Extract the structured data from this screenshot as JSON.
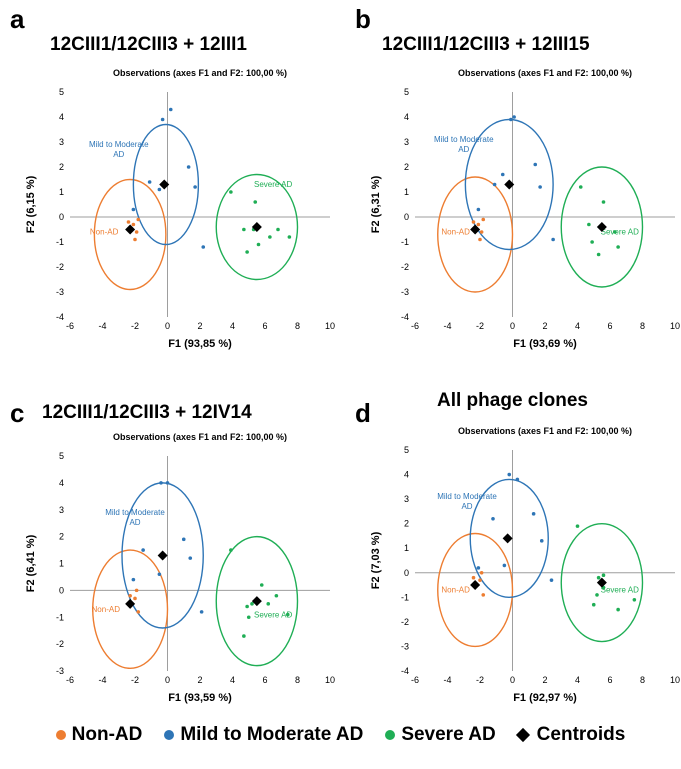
{
  "colors": {
    "non_ad": "#ED7D31",
    "mild": "#2E75B6",
    "severe": "#1FAE55",
    "centroid": "#000000",
    "axis": "#9E9E9E"
  },
  "legend": {
    "items": [
      {
        "label": "Non-AD",
        "marker": "dot",
        "color": "#ED7D31"
      },
      {
        "label": "Mild to Moderate AD",
        "marker": "dot",
        "color": "#2E75B6"
      },
      {
        "label": "Severe AD",
        "marker": "dot",
        "color": "#1FAE55"
      },
      {
        "label": "Centroids",
        "marker": "diamond",
        "color": "#000000"
      }
    ]
  },
  "chart_data": [
    {
      "panel": "a",
      "title": "12CIII1/12CIII3 + 12III1",
      "subtitle": "Observations (axes F1 and F2: 100,00 %)",
      "type": "scatter",
      "xlabel": "F1 (93,85 %)",
      "ylabel": "F2 (6,15 %)",
      "xlim": [
        -6,
        10
      ],
      "ylim": [
        -4,
        5
      ],
      "xticks": [
        -6,
        -4,
        -2,
        0,
        2,
        4,
        6,
        8,
        10
      ],
      "yticks": [
        -4,
        -3,
        -2,
        -1,
        0,
        1,
        2,
        3,
        4,
        5
      ],
      "groups": [
        {
          "name": "Non-AD",
          "color": "#ED7D31",
          "label_pos": [
            -3.9,
            -0.7
          ],
          "points": [
            [
              -2.3,
              -0.5
            ],
            [
              -2.1,
              -0.3
            ],
            [
              -1.9,
              -0.6
            ],
            [
              -2.0,
              -0.9
            ],
            [
              -2.4,
              -0.2
            ],
            [
              -1.8,
              -0.1
            ]
          ],
          "ellipse": {
            "cx": -2.3,
            "cy": -0.7,
            "rx": 2.2,
            "ry": 2.2
          }
        },
        {
          "name": "Mild to Moderate AD",
          "color": "#2E75B6",
          "label_pos": [
            -3.0,
            2.8
          ],
          "points": [
            [
              -0.3,
              3.9
            ],
            [
              0.2,
              4.3
            ],
            [
              -0.5,
              1.1
            ],
            [
              1.3,
              2.0
            ],
            [
              1.7,
              1.2
            ],
            [
              2.2,
              -1.2
            ],
            [
              -1.1,
              1.4
            ],
            [
              -2.1,
              0.3
            ]
          ],
          "ellipse": {
            "cx": -0.1,
            "cy": 1.3,
            "rx": 2.0,
            "ry": 2.4
          }
        },
        {
          "name": "Severe AD",
          "color": "#1FAE55",
          "label_pos": [
            6.5,
            1.2
          ],
          "points": [
            [
              3.9,
              1.0
            ],
            [
              4.7,
              -0.5
            ],
            [
              4.9,
              -1.4
            ],
            [
              5.3,
              -0.5
            ],
            [
              5.6,
              -1.1
            ],
            [
              6.3,
              -0.8
            ],
            [
              6.8,
              -0.5
            ],
            [
              5.4,
              0.6
            ],
            [
              7.5,
              -0.8
            ]
          ],
          "ellipse": {
            "cx": 5.5,
            "cy": -0.4,
            "rx": 2.5,
            "ry": 2.1
          }
        }
      ],
      "centroids": [
        [
          -2.3,
          -0.5
        ],
        [
          -0.2,
          1.3
        ],
        [
          5.5,
          -0.4
        ]
      ]
    },
    {
      "panel": "b",
      "title": "12CIII1/12CIII3 + 12III15",
      "subtitle": "Observations (axes F1 and F2: 100,00 %)",
      "type": "scatter",
      "xlabel": "F1 (93,69 %)",
      "ylabel": "F2 (6,31 %)",
      "xlim": [
        -6,
        10
      ],
      "ylim": [
        -4,
        5
      ],
      "xticks": [
        -6,
        -4,
        -2,
        0,
        2,
        4,
        6,
        8,
        10
      ],
      "yticks": [
        -4,
        -3,
        -2,
        -1,
        0,
        1,
        2,
        3,
        4,
        5
      ],
      "groups": [
        {
          "name": "Non-AD",
          "color": "#ED7D31",
          "label_pos": [
            -3.5,
            -0.7
          ],
          "points": [
            [
              -2.3,
              -0.5
            ],
            [
              -2.1,
              -0.3
            ],
            [
              -1.9,
              -0.6
            ],
            [
              -2.0,
              -0.9
            ],
            [
              -2.4,
              -0.2
            ],
            [
              -1.8,
              -0.1
            ]
          ],
          "ellipse": {
            "cx": -2.3,
            "cy": -0.7,
            "rx": 2.3,
            "ry": 2.3
          }
        },
        {
          "name": "Mild to Moderate AD",
          "color": "#2E75B6",
          "label_pos": [
            -3.0,
            3.0
          ],
          "points": [
            [
              -0.1,
              3.9
            ],
            [
              0.1,
              4.0
            ],
            [
              -0.6,
              1.7
            ],
            [
              1.4,
              2.1
            ],
            [
              1.7,
              1.2
            ],
            [
              2.5,
              -0.9
            ],
            [
              -1.1,
              1.3
            ],
            [
              -2.1,
              0.3
            ]
          ],
          "ellipse": {
            "cx": -0.2,
            "cy": 1.3,
            "rx": 2.7,
            "ry": 2.6
          }
        },
        {
          "name": "Severe AD",
          "color": "#1FAE55",
          "label_pos": [
            6.6,
            -0.7
          ],
          "points": [
            [
              4.2,
              1.2
            ],
            [
              4.7,
              -0.3
            ],
            [
              4.9,
              -1.0
            ],
            [
              5.3,
              -1.5
            ],
            [
              5.6,
              0.6
            ],
            [
              6.3,
              -0.6
            ],
            [
              6.5,
              -1.2
            ]
          ],
          "ellipse": {
            "cx": 5.5,
            "cy": -0.4,
            "rx": 2.5,
            "ry": 2.4
          }
        }
      ],
      "centroids": [
        [
          -2.3,
          -0.5
        ],
        [
          -0.2,
          1.3
        ],
        [
          5.5,
          -0.4
        ]
      ]
    },
    {
      "panel": "c",
      "title": "12CIII1/12CIII3 + 12IV14",
      "subtitle": "Observations (axes F1 and F2: 100,00 %)",
      "type": "scatter",
      "xlabel": "F1 (93,59 %)",
      "ylabel": "F2 (6,41 %)",
      "xlim": [
        -6,
        10
      ],
      "ylim": [
        -3,
        5
      ],
      "xticks": [
        -6,
        -4,
        -2,
        0,
        2,
        4,
        6,
        8,
        10
      ],
      "yticks": [
        -3,
        -2,
        -1,
        0,
        1,
        2,
        3,
        4,
        5
      ],
      "groups": [
        {
          "name": "Non-AD",
          "color": "#ED7D31",
          "label_pos": [
            -3.8,
            -0.8
          ],
          "points": [
            [
              -2.2,
              -0.5
            ],
            [
              -2.0,
              -0.3
            ],
            [
              -1.8,
              -0.8
            ],
            [
              -2.3,
              -0.2
            ],
            [
              -1.9,
              0.0
            ]
          ],
          "ellipse": {
            "cx": -2.3,
            "cy": -0.7,
            "rx": 2.3,
            "ry": 2.2
          }
        },
        {
          "name": "Mild to Moderate AD",
          "color": "#2E75B6",
          "label_pos": [
            -2.0,
            2.8
          ],
          "points": [
            [
              -0.4,
              4.0
            ],
            [
              0.0,
              4.0
            ],
            [
              -0.5,
              0.6
            ],
            [
              1.0,
              1.9
            ],
            [
              1.4,
              1.2
            ],
            [
              2.1,
              -0.8
            ],
            [
              -1.5,
              1.5
            ],
            [
              -2.1,
              0.4
            ]
          ],
          "ellipse": {
            "cx": -0.3,
            "cy": 1.3,
            "rx": 2.5,
            "ry": 2.7
          }
        },
        {
          "name": "Severe AD",
          "color": "#1FAE55",
          "label_pos": [
            6.5,
            -1.0
          ],
          "points": [
            [
              3.9,
              1.5
            ],
            [
              4.9,
              -0.6
            ],
            [
              5.0,
              -1.0
            ],
            [
              5.2,
              -0.5
            ],
            [
              5.8,
              0.2
            ],
            [
              6.2,
              -0.5
            ],
            [
              6.7,
              -0.2
            ],
            [
              7.4,
              -0.9
            ],
            [
              4.7,
              -1.7
            ]
          ],
          "ellipse": {
            "cx": 5.5,
            "cy": -0.4,
            "rx": 2.5,
            "ry": 2.4
          }
        }
      ],
      "centroids": [
        [
          -2.3,
          -0.5
        ],
        [
          -0.3,
          1.3
        ],
        [
          5.5,
          -0.4
        ]
      ]
    },
    {
      "panel": "d",
      "title": "All phage clones",
      "subtitle": "Observations (axes F1 and F2: 100,00 %)",
      "type": "scatter",
      "xlabel": "F1 (92,97 %)",
      "ylabel": "F2 (7,03 %)",
      "xlim": [
        -6,
        10
      ],
      "ylim": [
        -4,
        5
      ],
      "xticks": [
        -6,
        -4,
        -2,
        0,
        2,
        4,
        6,
        8,
        10
      ],
      "yticks": [
        -4,
        -3,
        -2,
        -1,
        0,
        1,
        2,
        3,
        4,
        5
      ],
      "groups": [
        {
          "name": "Non-AD",
          "color": "#ED7D31",
          "label_pos": [
            -3.5,
            -0.8
          ],
          "points": [
            [
              -2.3,
              -0.5
            ],
            [
              -2.0,
              -0.3
            ],
            [
              -1.8,
              -0.9
            ],
            [
              -2.4,
              -0.2
            ],
            [
              -1.9,
              0.0
            ]
          ],
          "ellipse": {
            "cx": -2.3,
            "cy": -0.7,
            "rx": 2.3,
            "ry": 2.3
          }
        },
        {
          "name": "Mild to Moderate AD",
          "color": "#2E75B6",
          "label_pos": [
            -2.8,
            3.0
          ],
          "points": [
            [
              -0.2,
              4.0
            ],
            [
              0.3,
              3.8
            ],
            [
              -0.5,
              0.3
            ],
            [
              1.3,
              2.4
            ],
            [
              1.8,
              1.3
            ],
            [
              2.4,
              -0.3
            ],
            [
              -1.2,
              2.2
            ],
            [
              -2.1,
              0.2
            ]
          ],
          "ellipse": {
            "cx": -0.2,
            "cy": 1.4,
            "rx": 2.4,
            "ry": 2.4
          }
        },
        {
          "name": "Severe AD",
          "color": "#1FAE55",
          "label_pos": [
            6.6,
            -0.8
          ],
          "points": [
            [
              4.0,
              1.9
            ],
            [
              5.0,
              -1.3
            ],
            [
              5.2,
              -0.9
            ],
            [
              5.3,
              -0.2
            ],
            [
              5.6,
              -0.6
            ],
            [
              6.5,
              -1.5
            ],
            [
              7.5,
              -1.1
            ],
            [
              5.6,
              -0.1
            ]
          ],
          "ellipse": {
            "cx": 5.5,
            "cy": -0.4,
            "rx": 2.5,
            "ry": 2.4
          }
        }
      ],
      "centroids": [
        [
          -2.3,
          -0.5
        ],
        [
          -0.3,
          1.4
        ],
        [
          5.5,
          -0.4
        ]
      ]
    }
  ]
}
